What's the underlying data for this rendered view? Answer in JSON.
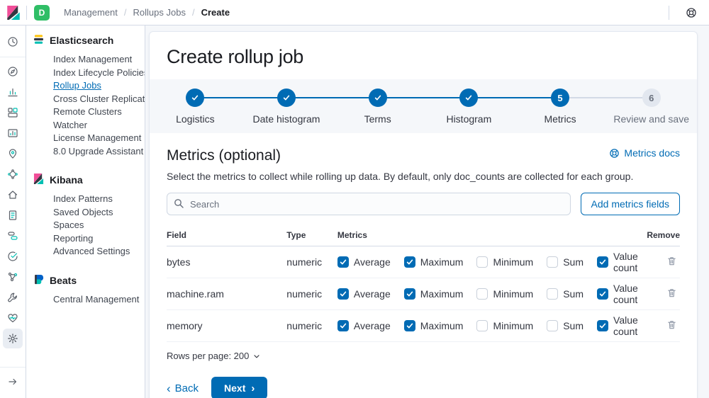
{
  "topbar": {
    "space_badge": "D",
    "breadcrumbs": [
      "Management",
      "Rollups Jobs",
      "Create"
    ]
  },
  "icon_rail": {
    "items": [
      "recently-viewed",
      "discover",
      "visualize",
      "dashboard",
      "canvas",
      "maps",
      "machine-learning",
      "infrastructure",
      "logs",
      "apm",
      "uptime",
      "graph",
      "dev-tools",
      "monitoring",
      "management"
    ],
    "active": "management"
  },
  "sidebar": {
    "sections": [
      {
        "title": "Elasticsearch",
        "logo": "elasticsearch",
        "items": [
          "Index Management",
          "Index Lifecycle Policies",
          "Rollup Jobs",
          "Cross Cluster Replication",
          "Remote Clusters",
          "Watcher",
          "License Management",
          "8.0 Upgrade Assistant"
        ],
        "active": "Rollup Jobs"
      },
      {
        "title": "Kibana",
        "logo": "kibana",
        "items": [
          "Index Patterns",
          "Saved Objects",
          "Spaces",
          "Reporting",
          "Advanced Settings"
        ]
      },
      {
        "title": "Beats",
        "logo": "beats",
        "items": [
          "Central Management"
        ]
      }
    ]
  },
  "wizard": {
    "title": "Create rollup job",
    "steps": [
      {
        "label": "Logistics",
        "status": "complete"
      },
      {
        "label": "Date histogram",
        "status": "complete"
      },
      {
        "label": "Terms",
        "status": "complete"
      },
      {
        "label": "Histogram",
        "status": "complete"
      },
      {
        "label": "Metrics",
        "status": "current",
        "number": "5"
      },
      {
        "label": "Review and save",
        "status": "incomplete",
        "number": "6"
      }
    ]
  },
  "metrics": {
    "heading": "Metrics (optional)",
    "docs_link": "Metrics docs",
    "description": "Select the metrics to collect while rolling up data. By default, only doc_counts are collected for each group.",
    "search_placeholder": "Search",
    "add_button": "Add metrics fields",
    "table": {
      "columns": [
        "Field",
        "Type",
        "Metrics",
        "Remove"
      ],
      "metric_options": [
        "Average",
        "Maximum",
        "Minimum",
        "Sum",
        "Value count"
      ],
      "rows": [
        {
          "field": "bytes",
          "type": "numeric",
          "selected": [
            true,
            true,
            false,
            false,
            true
          ]
        },
        {
          "field": "machine.ram",
          "type": "numeric",
          "selected": [
            true,
            true,
            false,
            false,
            true
          ]
        },
        {
          "field": "memory",
          "type": "numeric",
          "selected": [
            true,
            true,
            false,
            false,
            true
          ]
        }
      ]
    },
    "pagination": "Rows per page: 200",
    "back_button": "Back",
    "next_button": "Next"
  },
  "colors": {
    "primary": "#006BB4",
    "teal": "#00BFB3",
    "yellow": "#FEC514",
    "pink": "#F04E98",
    "space_badge_green": "#2FBE66",
    "step_incomplete": "#E2E7EF",
    "border": "#D3DAE6"
  }
}
